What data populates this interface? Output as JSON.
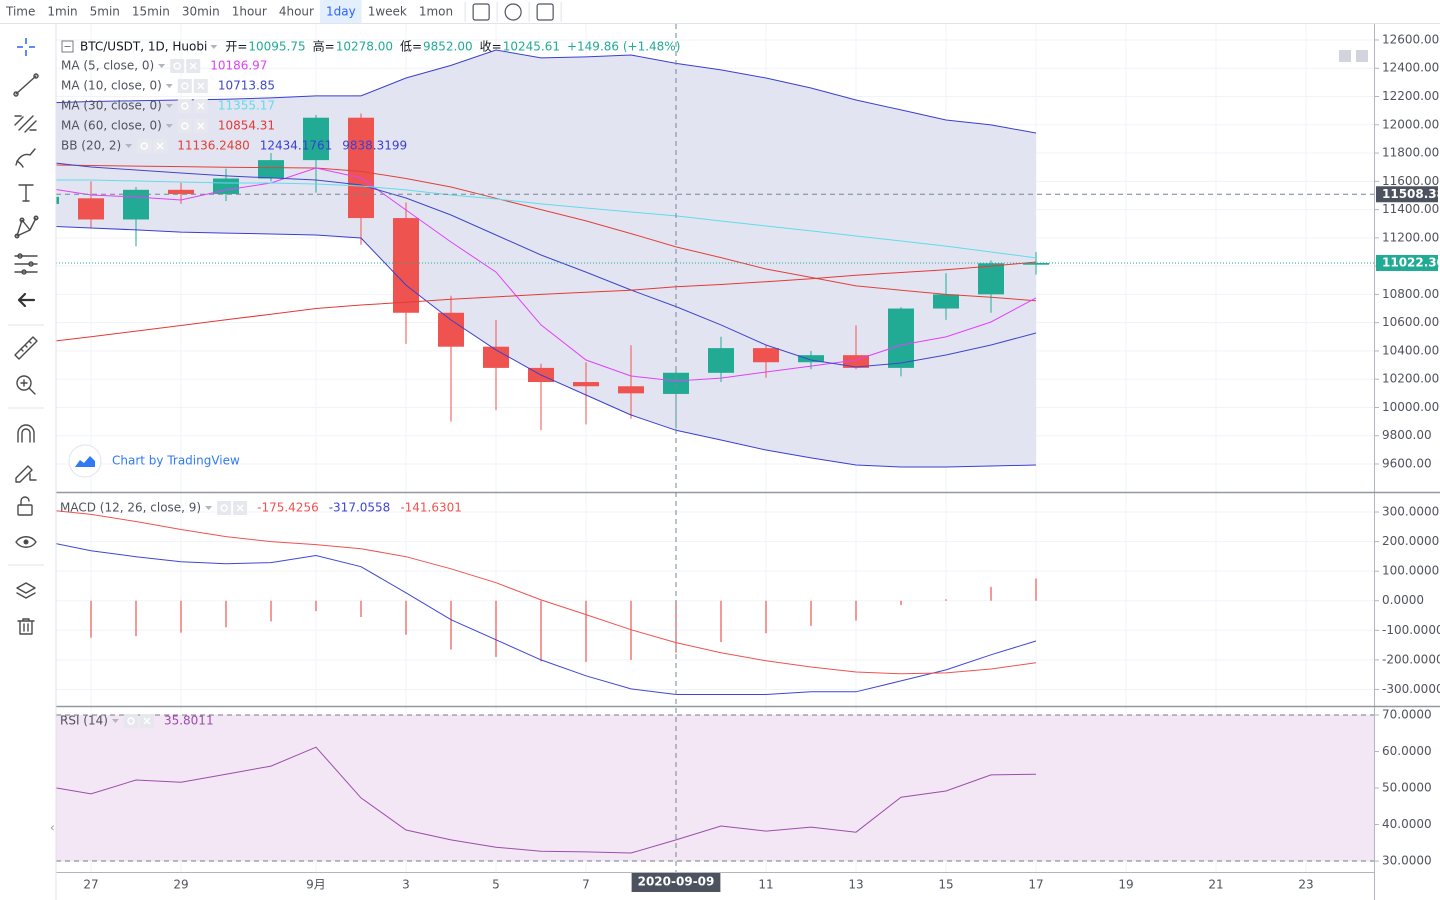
{
  "toolbar": {
    "intervals": [
      "Time",
      "1min",
      "5min",
      "15min",
      "30min",
      "1hour",
      "4hour",
      "1day",
      "1week",
      "1mon"
    ],
    "active": "1day"
  },
  "chart_data": [
    {
      "type": "candlestick",
      "status": {
        "symbol": "BTC/USDT, 1D, Huobi",
        "fields": [
          {
            "key": "开=",
            "value": "10095.75"
          },
          {
            "key": "高=",
            "value": "10278.00"
          },
          {
            "key": "低=",
            "value": "9852.00"
          },
          {
            "key": "收=",
            "value": "10245.61"
          }
        ],
        "change": "+149.86 (+1.48%)"
      },
      "x": [
        "2020-08-26",
        "2020-08-27",
        "2020-08-28",
        "2020-08-29",
        "2020-08-30",
        "2020-08-31",
        "2020-09-01",
        "2020-09-02",
        "2020-09-03",
        "2020-09-04",
        "2020-09-05",
        "2020-09-06",
        "2020-09-07",
        "2020-09-08",
        "2020-09-09",
        "2020-09-10",
        "2020-09-11",
        "2020-09-12",
        "2020-09-13",
        "2020-09-14",
        "2020-09-15",
        "2020-09-16",
        "2020-09-17"
      ],
      "open": [
        11440,
        11480,
        11330,
        11540,
        11510,
        11620,
        11750,
        12050,
        11340,
        10670,
        10430,
        10280,
        10180,
        10150,
        10095.75,
        10245,
        10420,
        10320,
        10370,
        10280,
        10700,
        10800,
        11010
      ],
      "high": [
        11530,
        11600,
        11560,
        11590,
        11690,
        11800,
        12070,
        12080,
        11450,
        10790,
        10620,
        10310,
        10320,
        10440,
        10278,
        10500,
        10440,
        10400,
        10580,
        10710,
        10950,
        11040,
        11100
      ],
      "low": [
        11300,
        11270,
        11140,
        11440,
        11460,
        11600,
        11520,
        11150,
        10450,
        9900,
        9980,
        9840,
        9880,
        9920,
        9852,
        10180,
        10210,
        10270,
        10270,
        10220,
        10620,
        10670,
        10940
      ],
      "close": [
        11490,
        11330,
        11540,
        11510,
        11620,
        11750,
        12050,
        11340,
        10670,
        10430,
        10280,
        10180,
        10150,
        10100,
        10245.61,
        10420,
        10320,
        10370,
        10280,
        10700,
        10800,
        11020,
        11022.3
      ],
      "up_color": "#22ab94",
      "down_color": "#ef5350",
      "overlays": [
        {
          "name": "MA (5, close, 0)",
          "color": "#e040fb",
          "legend_value": "10186.97",
          "values": [
            11553,
            11503,
            11489,
            11468,
            11539,
            11588,
            11694,
            11624,
            11397,
            11171,
            10958,
            10584,
            10336,
            10223,
            10186.97,
            10208,
            10251,
            10293,
            10336,
            10442,
            10499,
            10605,
            10775
          ]
        },
        {
          "name": "MA (10, close, 0)",
          "color": "#3f46c8",
          "legend_value": "10713.85",
          "values": [
            11737,
            11701,
            11680,
            11659,
            11638,
            11624,
            11609,
            11574,
            11482,
            11362,
            11220,
            11079,
            10958,
            10831,
            10713.85,
            10584,
            10442,
            10336,
            10286,
            10315,
            10371,
            10442,
            10527
          ]
        },
        {
          "name": "MA (30, close, 0)",
          "color": "#62dbe8",
          "legend_value": "11355.17",
          "values": [
            11609,
            11609,
            11602,
            11595,
            11588,
            11588,
            11581,
            11567,
            11539,
            11503,
            11475,
            11440,
            11411,
            11383,
            11355.17,
            11319,
            11284,
            11249,
            11213,
            11178,
            11142,
            11100,
            11058
          ]
        },
        {
          "name": "MA (60, close, 0)",
          "color": "#e53935",
          "legend_value": "10854.31",
          "values": [
            10463,
            10500,
            10540,
            10580,
            10620,
            10660,
            10700,
            10725,
            10745,
            10765,
            10782,
            10800,
            10815,
            10830,
            10854.31,
            10870,
            10890,
            10910,
            10935,
            10955,
            10975,
            11000,
            11029
          ]
        }
      ],
      "bollinger": {
        "name": "BB (20, 2)",
        "fill": "#e3e4f2",
        "series": [
          {
            "color": "#e0413a",
            "legend_value": "11136.2480",
            "values": [
              11716,
              11712,
              11708,
              11704,
              11700,
              11697,
              11694,
              11670,
              11620,
              11560,
              11480,
              11400,
              11320,
              11230,
              11136.248,
              11060,
              10980,
              10920,
              10860,
              10830,
              10800,
              10780,
              10755
            ]
          },
          {
            "color": "#3a3fd0",
            "legend_value": "12434.1761",
            "values": [
              12154,
              12165,
              12170,
              12175,
              12180,
              12190,
              12204,
              12204,
              12331,
              12420,
              12529,
              12473,
              12480,
              12494,
              12434.1761,
              12388,
              12331,
              12260,
              12175,
              12105,
              12034,
              11999,
              11942
            ]
          },
          {
            "color": "#3a3fd0",
            "legend_value": "9838.3199",
            "values": [
              11284,
              11270,
              11256,
              11241,
              11234,
              11227,
              11220,
              11199,
              10866,
              10619,
              10407,
              10230,
              10088,
              9947,
              9838.3199,
              9770,
              9699,
              9643,
              9593,
              9579,
              9579,
              9586,
              9593
            ]
          }
        ]
      },
      "xlim": [
        "2020-08-26",
        "2020-09-24"
      ],
      "xticks": [
        {
          "value": "2020-08-27",
          "label": "27"
        },
        {
          "value": "2020-08-29",
          "label": "29"
        },
        {
          "value": "2020-09-01",
          "label": "9月"
        },
        {
          "value": "2020-09-03",
          "label": "3"
        },
        {
          "value": "2020-09-05",
          "label": "5"
        },
        {
          "value": "2020-09-07",
          "label": "7"
        },
        {
          "value": "2020-09-11",
          "label": "11"
        },
        {
          "value": "2020-09-13",
          "label": "13"
        },
        {
          "value": "2020-09-15",
          "label": "15"
        },
        {
          "value": "2020-09-17",
          "label": "17"
        },
        {
          "value": "2020-09-19",
          "label": "19"
        },
        {
          "value": "2020-09-21",
          "label": "21"
        },
        {
          "value": "2020-09-23",
          "label": "23"
        }
      ],
      "ylim": [
        9402,
        12713
      ],
      "yticks": [
        {
          "value": 12600,
          "label": "12600.00"
        },
        {
          "value": 12400,
          "label": "12400.00"
        },
        {
          "value": 12200,
          "label": "12200.00"
        },
        {
          "value": 12000,
          "label": "12000.00"
        },
        {
          "value": 11800,
          "label": "11800.00"
        },
        {
          "value": 11600,
          "label": "11600.00"
        },
        {
          "value": 11400,
          "label": "11400.00"
        },
        {
          "value": 11200,
          "label": "11200.00"
        },
        {
          "value": 11000,
          "label": "11000.00"
        },
        {
          "value": 10800,
          "label": "10800.00"
        },
        {
          "value": 10600,
          "label": "10600.00"
        },
        {
          "value": 10400,
          "label": "10400.00"
        },
        {
          "value": 10200,
          "label": "10200.00"
        },
        {
          "value": 10000,
          "label": "10000.00"
        },
        {
          "value": 9800,
          "label": "9800.00"
        },
        {
          "value": 9600,
          "label": "9600.00"
        }
      ],
      "crosshair": {
        "x": "2020-09-09",
        "y": 11508.38
      },
      "last_price": {
        "value": 11022.3,
        "label": "11022.30"
      },
      "grid": true,
      "watermark": "Chart by TradingView"
    },
    {
      "type": "macd",
      "name": "MACD (12, 26, close, 9)",
      "histogram": {
        "color": "#ef5350",
        "legend_value": "-175.4256",
        "values": [
          -130,
          -125,
          -120,
          -108,
          -90,
          -70,
          -35,
          -55,
          -115,
          -165,
          -190,
          -205,
          -207,
          -200,
          -175.4256,
          -140,
          -110,
          -85,
          -67,
          -15,
          5,
          47,
          75
        ]
      },
      "series": [
        {
          "color": "#3f46d6",
          "legend_value": "-317.0558",
          "values": [
            200,
            169,
            149,
            132,
            125,
            129,
            153,
            115,
            27,
            -64,
            -132,
            -200,
            -254,
            -298,
            -317.0558,
            -317,
            -317,
            -308,
            -308,
            -271,
            -234,
            -183,
            -136
          ]
        },
        {
          "color": "#ef5350",
          "legend_value": "-141.6301",
          "values": [
            308,
            292,
            268,
            241,
            217,
            200,
            190,
            176,
            149,
            108,
            61,
            3,
            -47,
            -98,
            -141.6301,
            -176,
            -203,
            -224,
            -241,
            -247,
            -244,
            -231,
            -210
          ]
        }
      ],
      "ylim": [
        -356,
        361
      ],
      "yticks": [
        {
          "value": 300,
          "label": "300.0000"
        },
        {
          "value": 200,
          "label": "200.0000"
        },
        {
          "value": 100,
          "label": "100.0000"
        },
        {
          "value": 0,
          "label": "0.0000"
        },
        {
          "value": -100,
          "label": "-100.0000"
        },
        {
          "value": -200,
          "label": "-200.0000"
        },
        {
          "value": -300,
          "label": "-300.0000"
        }
      ],
      "grid": true
    },
    {
      "type": "line",
      "name": "RSI (14)",
      "series": [
        {
          "color": "#9a4fa8",
          "legend_value": "35.8011",
          "values": [
            50.5,
            48.4,
            52.2,
            51.6,
            53.8,
            56,
            61.2,
            47.3,
            38.5,
            35.8,
            33.8,
            32.7,
            32.5,
            32.2,
            35.8011,
            39.6,
            38.2,
            39.3,
            37.9,
            47.5,
            49.2,
            53.6,
            53.8
          ]
        }
      ],
      "bands": [
        70,
        30
      ],
      "band_fill": "#f3e6f5",
      "ylim": [
        27,
        72.2
      ],
      "yticks": [
        {
          "value": 70,
          "label": "70.0000"
        },
        {
          "value": 60,
          "label": "60.0000"
        },
        {
          "value": 50,
          "label": "50.0000"
        },
        {
          "value": 40,
          "label": "40.0000"
        },
        {
          "value": 30,
          "label": "30.0000"
        }
      ],
      "grid": true
    }
  ]
}
